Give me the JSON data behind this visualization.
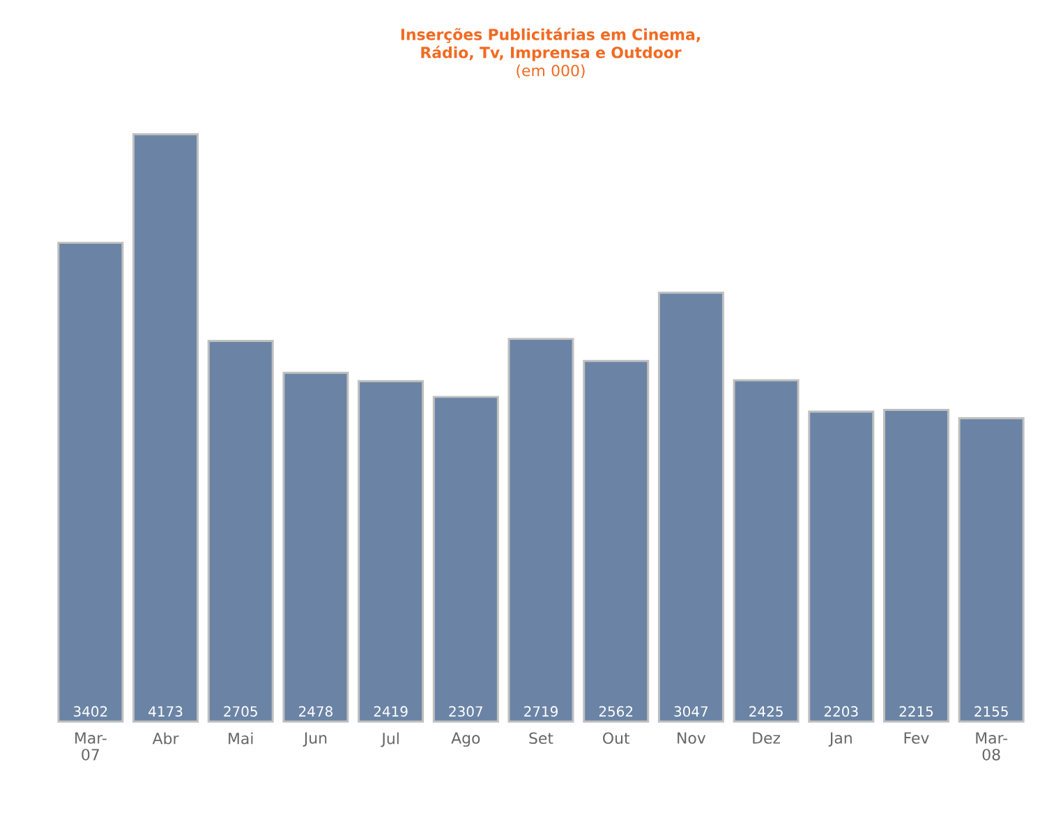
{
  "chart_data": {
    "type": "bar",
    "title": "Inserções Publicitárias em Cinema, Rádio, Tv, Imprensa e Outdoor",
    "subtitle": "(em 000)",
    "categories": [
      "Mar-07",
      "Abr",
      "Mai",
      "Jun",
      "Jul",
      "Ago",
      "Set",
      "Out",
      "Nov",
      "Dez",
      "Jan",
      "Fev",
      "Mar-08"
    ],
    "values": [
      3402,
      4173,
      2705,
      2478,
      2419,
      2307,
      2719,
      2562,
      3047,
      2425,
      2203,
      2215,
      2155
    ],
    "color": "#6b84a5",
    "data_labels": true
  }
}
